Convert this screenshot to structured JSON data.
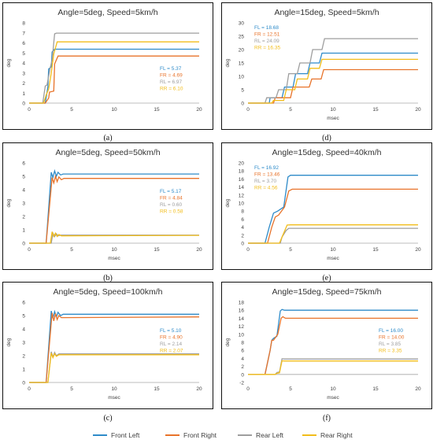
{
  "chart_data": [
    {
      "type": "line",
      "panel_label": "(a)",
      "title": "Angle=5deg, Speed=5km/h",
      "xlabel": "",
      "ylabel": "deg",
      "xlim": [
        0,
        20
      ],
      "ylim": [
        0,
        8
      ],
      "xticks": [
        0,
        5,
        10,
        15,
        20
      ],
      "yticks": [
        0,
        1,
        2,
        3,
        4,
        5,
        6,
        7,
        8
      ],
      "legend_position": "right",
      "series": [
        {
          "name": "Front Left",
          "x": [
            0,
            1.9,
            2.2,
            2.3,
            2.6,
            2.7,
            3.0,
            3.3,
            20
          ],
          "y": [
            0,
            0,
            1.6,
            3.4,
            3.6,
            5.1,
            5.37,
            5.37,
            5.37
          ],
          "annotation": "FL = 5.37"
        },
        {
          "name": "Front Right",
          "x": [
            0,
            1.9,
            2.3,
            2.4,
            2.9,
            3.0,
            3.4,
            20
          ],
          "y": [
            0,
            0,
            0.5,
            1.1,
            1.2,
            3.9,
            4.69,
            4.69
          ],
          "annotation": "FR = 4.69"
        },
        {
          "name": "Rear Left",
          "x": [
            0,
            1.6,
            1.9,
            2.1,
            2.5,
            2.7,
            3.0,
            3.2,
            20
          ],
          "y": [
            0,
            0,
            1.7,
            1.8,
            3.6,
            4.3,
            6.9,
            6.97,
            6.97
          ],
          "annotation": "RL = 6.97"
        },
        {
          "name": "Rear Right",
          "x": [
            0,
            1.7,
            2.0,
            2.3,
            2.6,
            2.9,
            3.3,
            20
          ],
          "y": [
            0,
            0,
            0.8,
            1.4,
            3.0,
            4.9,
            6.1,
            6.1
          ],
          "annotation": "RR = 6.10"
        }
      ]
    },
    {
      "type": "line",
      "panel_label": "(d)",
      "title": "Angle=15deg, Speed=5km/h",
      "xlabel": "msec",
      "ylabel": "deg",
      "xlim": [
        0,
        20
      ],
      "ylim": [
        0,
        30
      ],
      "xticks": [
        0,
        5,
        10,
        15,
        20
      ],
      "yticks": [
        0,
        5,
        10,
        15,
        20,
        25,
        30
      ],
      "legend_position": "top-left",
      "series": [
        {
          "name": "Front Left",
          "x": [
            0,
            2.5,
            2.6,
            4.0,
            4.3,
            5.3,
            5.6,
            7.0,
            7.3,
            8.4,
            8.7,
            20
          ],
          "y": [
            0,
            0,
            2,
            2,
            6,
            6,
            11,
            11,
            15,
            15,
            18.68,
            18.68
          ],
          "annotation": "FL = 18.68"
        },
        {
          "name": "Front Right",
          "x": [
            0,
            3.0,
            3.2,
            5.0,
            5.3,
            7.2,
            7.5,
            8.6,
            8.9,
            20
          ],
          "y": [
            0,
            0,
            2,
            2,
            6,
            6,
            9,
            9,
            12.51,
            12.51
          ],
          "annotation": "FR = 12.51"
        },
        {
          "name": "Rear Left",
          "x": [
            0,
            2.0,
            2.2,
            3.3,
            3.6,
            4.5,
            4.8,
            5.8,
            6.1,
            7.3,
            7.6,
            8.7,
            9.0,
            20
          ],
          "y": [
            0,
            0,
            2,
            2,
            5,
            5,
            11,
            11,
            15,
            15,
            20,
            20,
            24.09,
            24.09
          ],
          "annotation": "RL = 24.09"
        },
        {
          "name": "Rear Right",
          "x": [
            0,
            2.8,
            3.0,
            4.2,
            4.5,
            5.5,
            5.8,
            7.0,
            7.3,
            8.4,
            8.7,
            20
          ],
          "y": [
            0,
            0,
            1,
            1,
            5,
            5,
            9,
            9,
            13,
            13,
            16.35,
            16.35
          ],
          "annotation": "RR = 16.35"
        }
      ]
    },
    {
      "type": "line",
      "panel_label": "(b)",
      "title": "Angle=5deg, Speed=50km/h",
      "xlabel": "msec",
      "ylabel": "deg",
      "xlim": [
        0,
        20
      ],
      "ylim": [
        0,
        6
      ],
      "xticks": [
        0,
        5,
        10,
        15,
        20
      ],
      "yticks": [
        0,
        1,
        2,
        3,
        4,
        5,
        6
      ],
      "legend_position": "right",
      "series": [
        {
          "name": "Front Left",
          "x": [
            0,
            2.0,
            2.6,
            2.8,
            3.0,
            3.2,
            3.4,
            3.7,
            4.0,
            20
          ],
          "y": [
            0,
            0,
            5.3,
            4.9,
            5.4,
            5.0,
            5.3,
            5.1,
            5.17,
            5.17
          ],
          "annotation": "FL = 5.17"
        },
        {
          "name": "Front Right",
          "x": [
            0,
            2.0,
            2.7,
            2.9,
            3.1,
            3.3,
            3.5,
            3.8,
            4.1,
            20
          ],
          "y": [
            0,
            0,
            4.9,
            4.5,
            5.0,
            4.6,
            4.95,
            4.75,
            4.84,
            4.84
          ],
          "annotation": "FR = 4.84"
        },
        {
          "name": "Rear Left",
          "x": [
            0,
            2.6,
            2.8,
            3.0,
            3.2,
            3.4,
            3.7,
            20
          ],
          "y": [
            0,
            0,
            0.75,
            0.5,
            0.7,
            0.55,
            0.6,
            0.6
          ],
          "annotation": "RL = 0.60"
        },
        {
          "name": "Rear Right",
          "x": [
            0,
            2.5,
            2.7,
            2.9,
            3.1,
            3.3,
            3.5,
            3.8,
            20
          ],
          "y": [
            0,
            0,
            0.85,
            0.5,
            0.75,
            0.5,
            0.65,
            0.55,
            0.58
          ],
          "annotation": "RR = 0.58"
        }
      ]
    },
    {
      "type": "line",
      "panel_label": "(e)",
      "title": "Angle=15deg, Speed=40km/h",
      "xlabel": "msec",
      "ylabel": "deg",
      "xlim": [
        0,
        20
      ],
      "ylim": [
        0,
        20
      ],
      "xticks": [
        0,
        5,
        10,
        15,
        20
      ],
      "yticks": [
        0,
        2,
        4,
        6,
        8,
        10,
        12,
        14,
        16,
        18,
        20
      ],
      "legend_position": "top-left",
      "series": [
        {
          "name": "Front Left",
          "x": [
            0,
            2.0,
            2.5,
            3.0,
            3.5,
            4.2,
            4.7,
            5.0,
            20
          ],
          "y": [
            0,
            0,
            4,
            7.5,
            8,
            9,
            16.5,
            16.92,
            16.92
          ],
          "annotation": "FL = 16.92"
        },
        {
          "name": "Front Right",
          "x": [
            0,
            2.3,
            2.8,
            3.2,
            3.6,
            4.3,
            4.8,
            5.2,
            20
          ],
          "y": [
            0,
            0,
            4,
            6.5,
            7,
            9,
            13,
            13.46,
            13.46
          ],
          "annotation": "FR = 13.46"
        },
        {
          "name": "Rear Left",
          "x": [
            0,
            3.8,
            4.0,
            4.5,
            4.8,
            20
          ],
          "y": [
            0,
            0,
            1.5,
            3.2,
            3.7,
            3.7
          ],
          "annotation": "RL = 3.70"
        },
        {
          "name": "Rear Right",
          "x": [
            0,
            3.7,
            4.0,
            4.3,
            4.6,
            5.0,
            20
          ],
          "y": [
            0,
            0,
            1.5,
            3.0,
            4.5,
            4.56,
            4.56
          ],
          "annotation": "RR = 4.56"
        }
      ]
    },
    {
      "type": "line",
      "panel_label": "(c)",
      "title": "Angle=5deg, Speed=100km/h",
      "xlabel": "msec",
      "ylabel": "deg",
      "xlim": [
        0,
        20
      ],
      "ylim": [
        0,
        6
      ],
      "xticks": [
        0,
        5,
        10,
        15,
        20
      ],
      "yticks": [
        0,
        1,
        2,
        3,
        4,
        5,
        6
      ],
      "legend_position": "right",
      "series": [
        {
          "name": "Front Left",
          "x": [
            0,
            2.0,
            2.6,
            2.8,
            3.0,
            3.2,
            3.4,
            3.7,
            4.0,
            20
          ],
          "y": [
            0,
            0,
            5.35,
            4.8,
            5.3,
            4.9,
            5.25,
            5.0,
            5.1,
            5.1
          ],
          "annotation": "FL = 5.10"
        },
        {
          "name": "Front Right",
          "x": [
            0,
            2.0,
            2.7,
            2.9,
            3.1,
            3.3,
            3.5,
            3.8,
            20
          ],
          "y": [
            0,
            0,
            5.2,
            4.6,
            5.15,
            4.7,
            5.0,
            4.85,
            4.9
          ],
          "annotation": "FR = 4.90"
        },
        {
          "name": "Rear Left",
          "x": [
            0,
            2.2,
            2.6,
            2.8,
            3.0,
            3.2,
            3.5,
            20
          ],
          "y": [
            0,
            0,
            2.3,
            1.9,
            2.25,
            2.0,
            2.14,
            2.14
          ],
          "annotation": "RL = 2.14"
        },
        {
          "name": "Rear Right",
          "x": [
            0,
            2.2,
            2.6,
            2.8,
            3.0,
            3.2,
            3.5,
            20
          ],
          "y": [
            0,
            0,
            2.2,
            1.85,
            2.15,
            1.95,
            2.07,
            2.07
          ],
          "annotation": "RR = 2.07"
        }
      ]
    },
    {
      "type": "line",
      "panel_label": "(f)",
      "title": "Angle=15deg, Speed=75km/h",
      "xlabel": "msec",
      "ylabel": "deg",
      "xlim": [
        0,
        20
      ],
      "ylim": [
        -2,
        18
      ],
      "xticks": [
        0,
        5,
        10,
        15,
        20
      ],
      "yticks": [
        -2,
        0,
        2,
        4,
        6,
        8,
        10,
        12,
        14,
        16,
        18
      ],
      "legend_position": "right",
      "series": [
        {
          "name": "Front Left",
          "x": [
            0,
            2.0,
            2.6,
            2.8,
            3.0,
            3.4,
            3.8,
            4.0,
            4.3,
            20
          ],
          "y": [
            0,
            0,
            6,
            8.5,
            9,
            9.5,
            15.8,
            16.2,
            16.0,
            16.0
          ],
          "annotation": "FL = 16.00"
        },
        {
          "name": "Front Right",
          "x": [
            0,
            2.0,
            2.6,
            2.8,
            3.0,
            3.5,
            3.9,
            4.1,
            4.4,
            20
          ],
          "y": [
            0,
            0,
            6,
            8.5,
            8.5,
            10,
            14,
            14.4,
            14.0,
            14.0
          ],
          "annotation": "FR = 14.00"
        },
        {
          "name": "Rear Left",
          "x": [
            0,
            3.2,
            3.4,
            3.7,
            4.0,
            4.3,
            20
          ],
          "y": [
            0,
            0,
            0.5,
            0.6,
            3.9,
            3.85,
            3.85
          ],
          "annotation": "RL = 3.85"
        },
        {
          "name": "Rear Right",
          "x": [
            0,
            3.2,
            3.4,
            3.7,
            4.0,
            4.3,
            20
          ],
          "y": [
            0,
            0,
            0.3,
            0.4,
            3.4,
            3.35,
            3.35
          ],
          "annotation": "RR = 3.35"
        }
      ]
    }
  ],
  "colors": {
    "Front Left": "#2e8bc9",
    "Front Right": "#e8732a",
    "Rear Left": "#9e9e9e",
    "Rear Right": "#f2bd1a",
    "axis": "#a6a6a6",
    "grid": "#d9d9d9",
    "frame": "#111111",
    "text": "#404040"
  },
  "legend": [
    "Front Left",
    "Front Right",
    "Rear Left",
    "Rear Right"
  ]
}
